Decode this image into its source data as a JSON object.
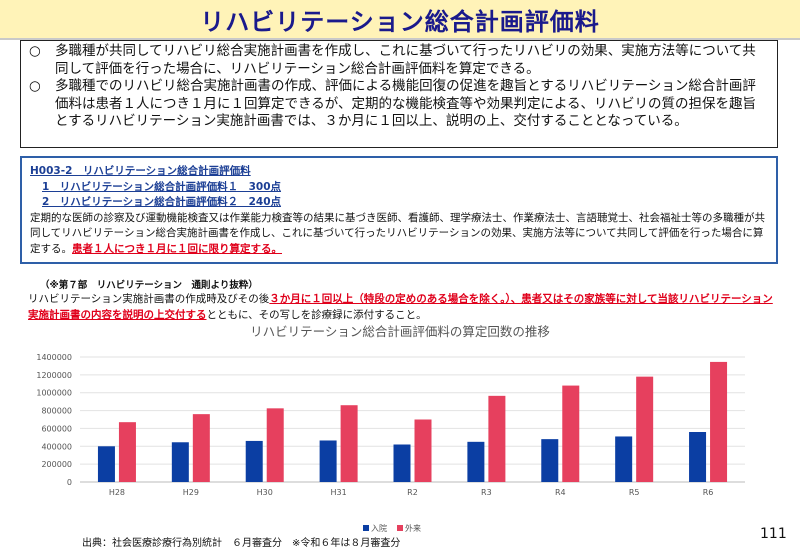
{
  "title": "リハビリテーション総合計画評価料",
  "summary": {
    "bullets": [
      {
        "mark": "○",
        "text": "多職種が共同してリハビリ総合実施計画書を作成し、これに基づいて行ったリハビリの効果、実施方法等について共同して評価を行った場合に、リハビリテーション総合計画評価料を算定できる。"
      },
      {
        "mark": "○",
        "text": "多職種でのリハビリ総合実施計画書の作成、評価による機能回復の促進を趣旨とするリハビリテーション総合計画評価料は患者１人につき１月に１回算定できるが、定期的な機能検査等や効果判定による、リハビリの質の担保を趣旨とするリハビリテーション実施計画書では、３か月に１回以上、説明の上、交付することとなっている。"
      }
    ]
  },
  "code_box": {
    "heading": "H003-2　リハビリテーション総合計画評価料",
    "item1": "1　リハビリテーション総合計画評価料１　300点",
    "item2": "2　リハビリテーション総合計画評価料２　240点",
    "body": "定期的な医師の診察及び運動機能検査又は作業能力検査等の結果に基づき医師、看護師、理学療法士、作業療法士、言語聴覚士、社会福祉士等の多職種が共同してリハビリテーション総合実施計画書を作成し、これに基づいて行ったリハビリテーションの効果、実施方法等について共同して評価を行った場合に算定する。",
    "body_red": "患者１人につき１月に１回に限り算定する。"
  },
  "note": {
    "label": "（※第７部　リハビリテーション　通則より抜粋）",
    "text_1": "リハビリテーション実施計画書の作成時及びその後",
    "text_red": "３か月に１回以上（特段の定めのある場合を除く。）、患者又はその家族等に対して当該リハビリテーション実施計画書の内容を説明の上交付する",
    "text_2": "とともに、その写しを診療録に添付すること。"
  },
  "source": "出典：社会医療診療行為別統計　６月審査分　※令和６年は８月審査分",
  "page_number": "111",
  "chart_data": {
    "type": "bar",
    "title": "リハビリテーション総合計画評価料の算定回数の推移",
    "categories": [
      "H28",
      "H29",
      "H30",
      "H31",
      "R2",
      "R3",
      "R4",
      "R5",
      "R6"
    ],
    "series": [
      {
        "name": "入院",
        "color": "#0b3ea3",
        "values": [
          400000,
          445000,
          460000,
          465000,
          420000,
          450000,
          480000,
          510000,
          560000
        ]
      },
      {
        "name": "外来",
        "color": "#e6405e",
        "values": [
          670000,
          760000,
          825000,
          860000,
          700000,
          965000,
          1080000,
          1180000,
          1345000
        ]
      }
    ],
    "ylim": [
      0,
      1400000
    ],
    "yticks": [
      "0",
      "200000",
      "400000",
      "600000",
      "800000",
      "1000000",
      "1200000",
      "1400000"
    ],
    "grid": true,
    "legend_position": "bottom-center"
  }
}
